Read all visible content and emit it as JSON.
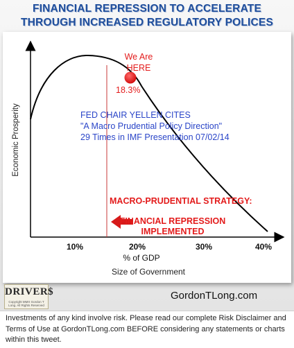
{
  "title_line1": "FINANCIAL REPRESSION TO ACCELERATE",
  "title_line2": "THROUGH INCREASED REGULATORY POLICES",
  "diagram": {
    "y_axis_label": "Economic Prosperity",
    "x_axis_label": "% of GDP",
    "x_axis_sublabel": "Size of Government",
    "ticks": [
      "10%",
      "20%",
      "30%",
      "40%"
    ],
    "marker_label_line1": "We Are",
    "marker_label_line2": "HERE",
    "marker_value": "18.3%",
    "marker_color": "#e31b1b",
    "fed_line1": "FED CHAIR YELLEN CITES",
    "fed_line2": "\"A Macro Prudential Policy Direction\"",
    "fed_line3": "29 Times in IMF Presentation 07/02/14",
    "fed_color": "#2a45c8",
    "strategy_text": "MACRO-PRUDENTIAL STRATEGY:",
    "repression_line1": "FINANCIAL REPRESSION",
    "repression_line2": "IMPLEMENTED",
    "accent_color": "#e31b1b"
  },
  "footer": {
    "logo_text": "DRIVER$",
    "logo_sub": "Copyright MMX Gordon T Long. All Rights Reserved",
    "site": "GordonTLong.com",
    "disclaimer": "Investments of any kind involve risk. Please read our complete Risk Disclaimer and Terms of Use at GordonTLong.com BEFORE considering any statements or charts within this tweet."
  }
}
